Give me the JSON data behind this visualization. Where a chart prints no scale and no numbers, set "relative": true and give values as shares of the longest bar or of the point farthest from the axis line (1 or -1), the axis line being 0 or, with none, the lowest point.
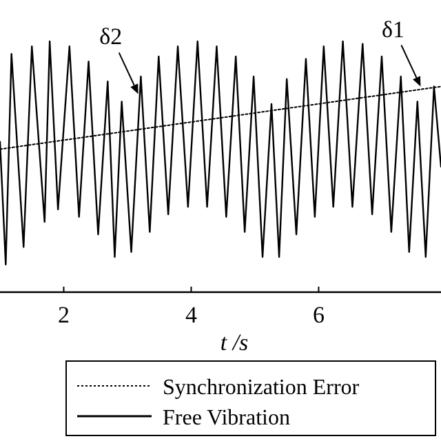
{
  "chart_data": {
    "type": "line",
    "relative": true,
    "xlabel": "t /s",
    "xlim": [
      1.0,
      7.92
    ],
    "xticks": [
      2,
      4,
      6
    ],
    "grid": false,
    "legend": "bottom",
    "series": [
      {
        "name": "Synchronization Error",
        "color": "#000000",
        "line_style": "dotted",
        "x": [
          1.0,
          7.92
        ],
        "values": [
          0.57,
          0.82
        ]
      },
      {
        "name": "Free Vibration",
        "color": "#000000",
        "line_style": "solid",
        "x": [
          1.0,
          1.09,
          1.18,
          1.37,
          1.5,
          1.7,
          1.78,
          1.91,
          2.09,
          2.24,
          2.39,
          2.54,
          2.69,
          2.8,
          2.91,
          3.06,
          3.21,
          3.35,
          3.49,
          3.64,
          3.79,
          3.95,
          4.1,
          4.25,
          4.4,
          4.55,
          4.7,
          4.84,
          4.98,
          5.12,
          5.26,
          5.38,
          5.5,
          5.65,
          5.8,
          5.94,
          6.08,
          6.23,
          6.38,
          6.53,
          6.69,
          6.84,
          6.99,
          7.14,
          7.29,
          7.42,
          7.55,
          7.68,
          7.81,
          7.92
        ],
        "values": [
          0.6,
          0.11,
          0.95,
          0.18,
          0.98,
          0.28,
          1.0,
          0.33,
          0.98,
          0.3,
          0.92,
          0.23,
          0.84,
          0.14,
          0.76,
          0.16,
          0.86,
          0.24,
          0.94,
          0.31,
          0.98,
          0.34,
          1.0,
          0.34,
          0.98,
          0.3,
          0.94,
          0.24,
          0.86,
          0.14,
          0.75,
          0.14,
          0.85,
          0.23,
          0.93,
          0.3,
          0.98,
          0.34,
          1.0,
          0.34,
          0.99,
          0.31,
          0.94,
          0.24,
          0.86,
          0.16,
          0.76,
          0.14,
          0.82,
          0.5
        ]
      }
    ],
    "annotations": [
      {
        "text": "δ2",
        "x": 3.17,
        "y": 0.79
      },
      {
        "text": "δ1",
        "x": 7.6,
        "y": 0.82
      }
    ]
  }
}
